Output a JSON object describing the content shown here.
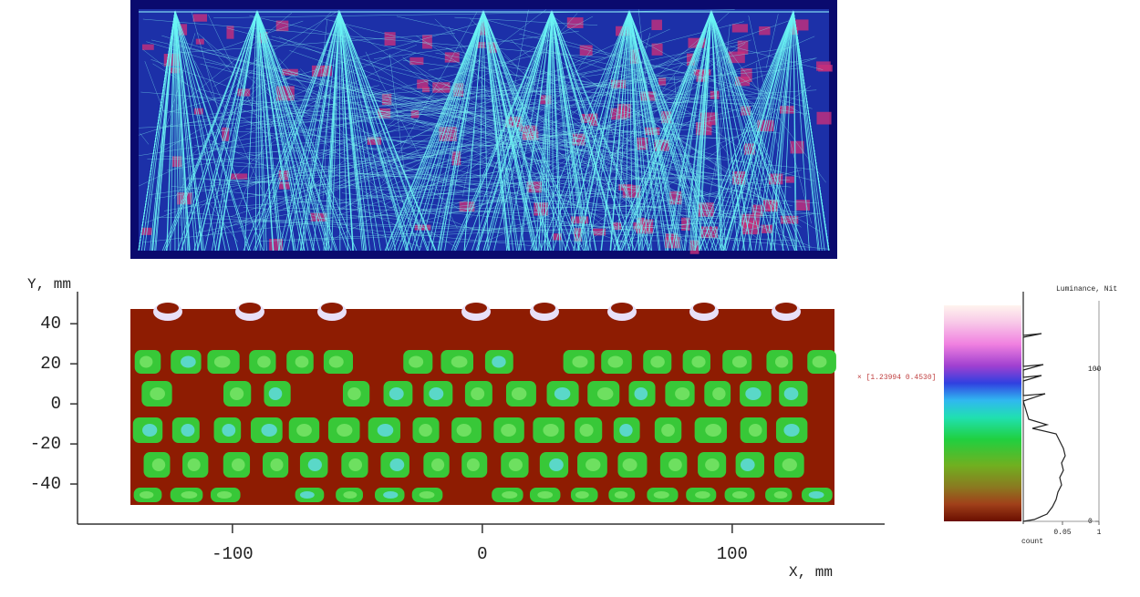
{
  "plot": {
    "x_label": "X, mm",
    "y_label": "Y, mm",
    "xlim": [
      -162,
      161
    ],
    "xticks": [
      -100,
      0,
      100
    ],
    "ylim": [
      -60,
      56
    ],
    "yticks": [
      40,
      20,
      0,
      -20,
      -40
    ]
  },
  "colorbar": {
    "label": "Luminance, Nit",
    "lim": [
      0,
      151
    ],
    "ticks": [
      0,
      100
    ],
    "count_label": "count",
    "count_lim": [
      0.002,
      1
    ],
    "count_ticks": [
      0.05,
      1
    ],
    "count_log": true
  },
  "annotation": "[1.23994 0.4530]"
}
